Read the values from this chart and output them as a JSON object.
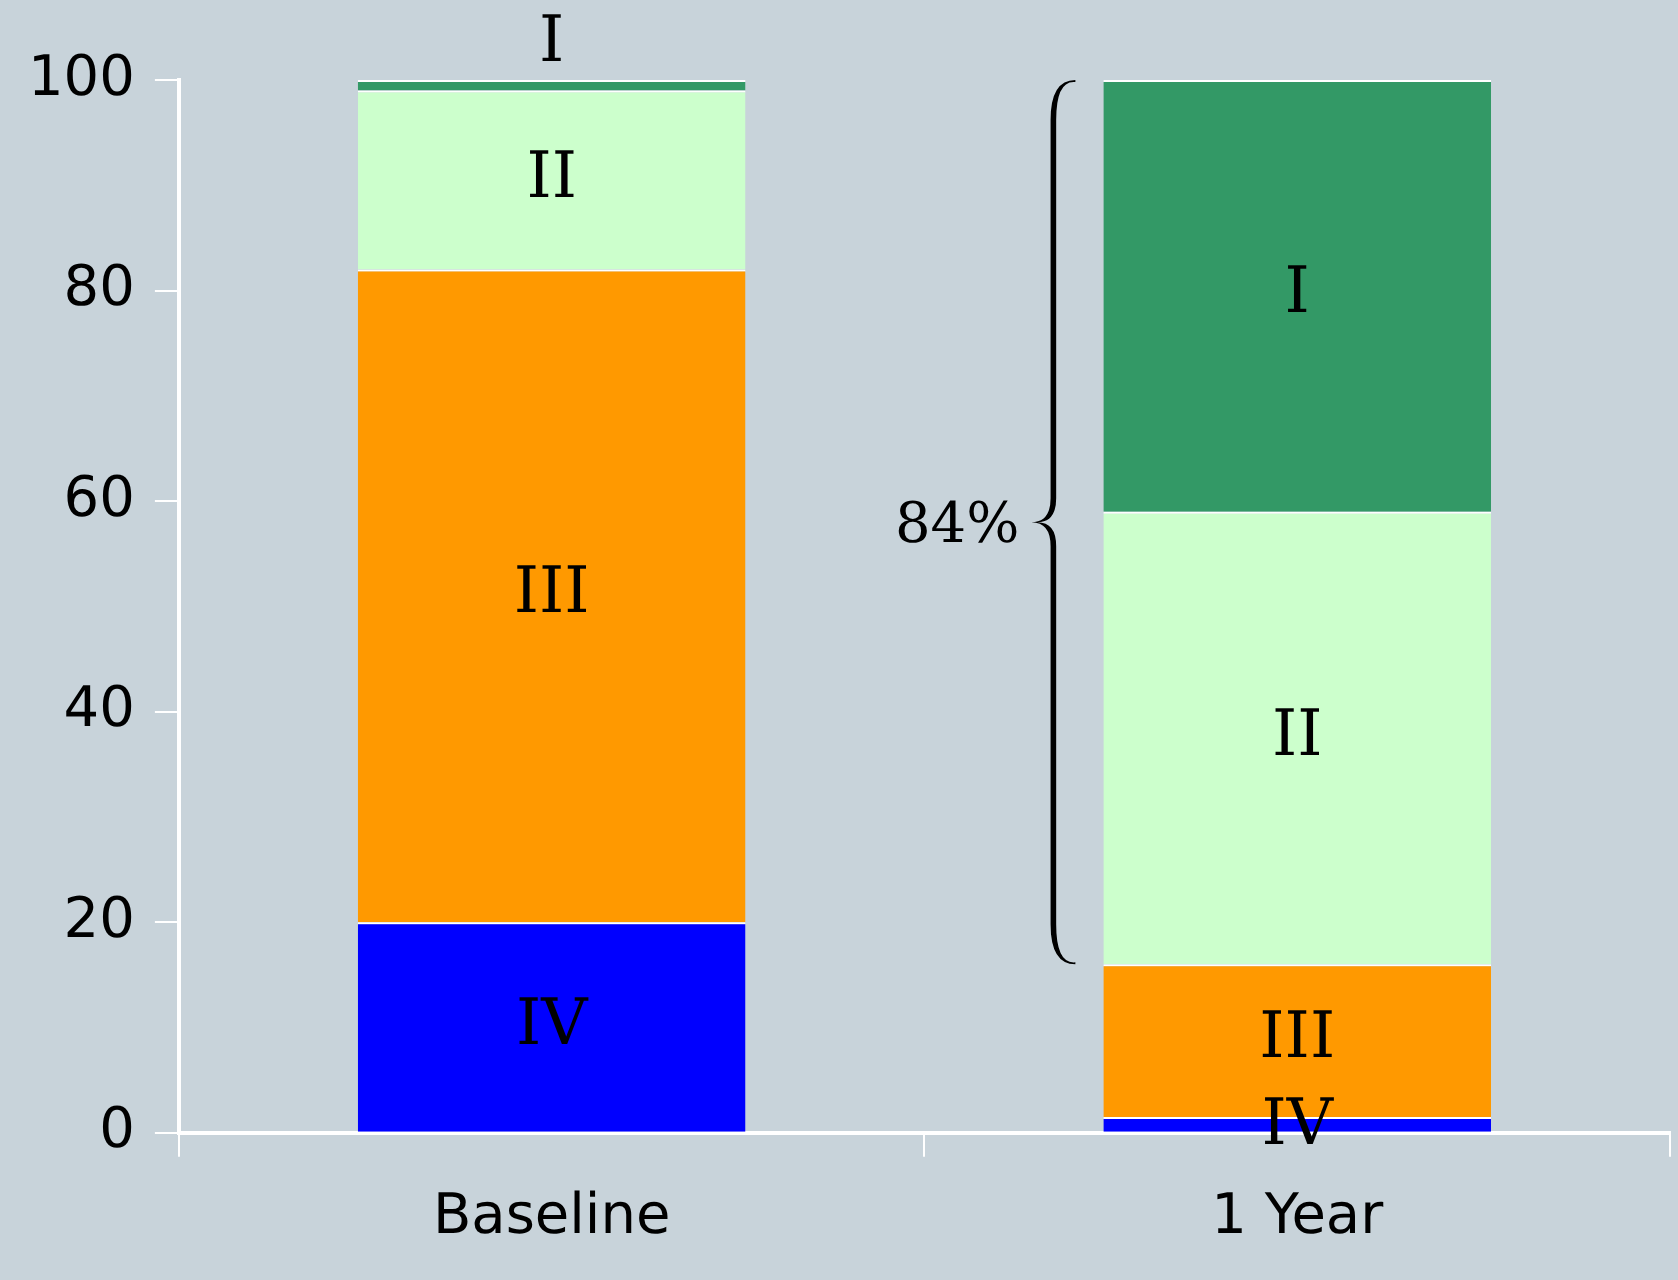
{
  "chart_data": {
    "type": "bar",
    "stacked": true,
    "categories": [
      "Baseline",
      "1 Year"
    ],
    "series": [
      {
        "name": "IV",
        "color": "#0000ff",
        "values": [
          20,
          1.5
        ]
      },
      {
        "name": "III",
        "color": "#ff9900",
        "values": [
          62,
          14.5
        ]
      },
      {
        "name": "II",
        "color": "#ccffcc",
        "values": [
          17,
          43
        ]
      },
      {
        "name": "I",
        "color": "#339966",
        "values": [
          1,
          41
        ]
      }
    ],
    "ylim": [
      0,
      100
    ],
    "yticks": [
      0,
      20,
      40,
      60,
      80,
      100
    ],
    "grid": false,
    "legend": false,
    "annotations": [
      "84%"
    ]
  }
}
